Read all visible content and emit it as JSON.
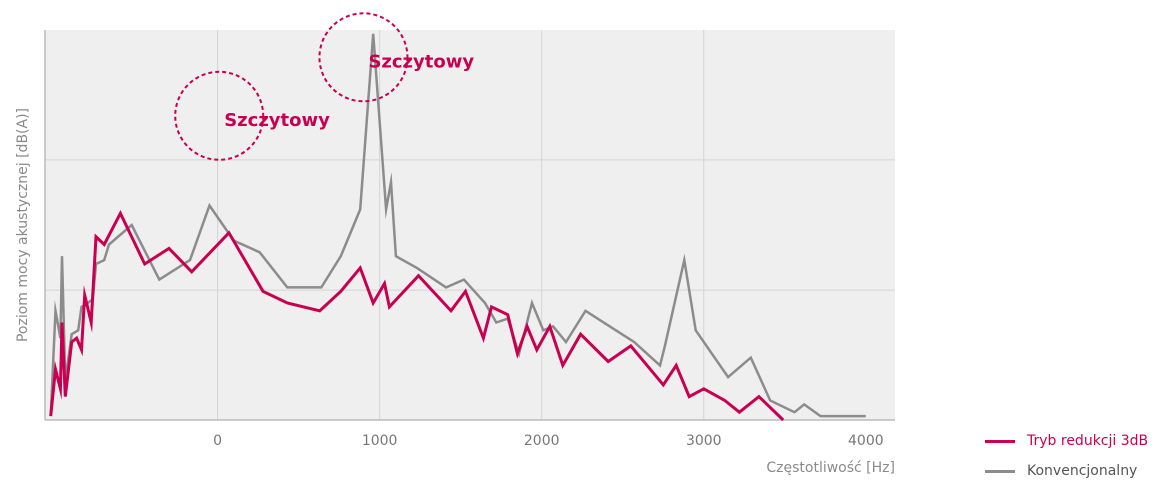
{
  "chart_data": {
    "type": "line",
    "xlabel": "Częstotliwość [Hz]",
    "ylabel": "Poziom mocy akustycznej [dB(A)]",
    "x_ticks": [
      0,
      1000,
      2000,
      3000,
      4000
    ],
    "x_tick_labels": [
      "0",
      "1000",
      "2000",
      "3000",
      "4000"
    ],
    "xlim": [
      -1065,
      4180
    ],
    "ylim": [
      0,
      100
    ],
    "y_gridlines": [
      33.3,
      66.7
    ],
    "grid": true,
    "legend_position": "bottom-right",
    "annotations": [
      {
        "text": "Szczytowy",
        "x": 10,
        "y": 78
      },
      {
        "text": "Szczytowy",
        "x": 900,
        "y": 93
      }
    ],
    "series": [
      {
        "name": "Tryb redukcji 3dB",
        "color": "#c8004f",
        "x": [
          -1030,
          -1000,
          -970,
          -960,
          -940,
          -900,
          -870,
          -840,
          -820,
          -780,
          -750,
          -700,
          -600,
          -450,
          -300,
          -160,
          70,
          280,
          430,
          630,
          760,
          880,
          960,
          1030,
          1060,
          1240,
          1440,
          1530,
          1640,
          1690,
          1790,
          1850,
          1910,
          1970,
          2050,
          2130,
          2240,
          2410,
          2550,
          2750,
          2830,
          2910,
          3000,
          3130,
          3220,
          3340,
          3490
        ],
        "y": [
          1,
          13,
          8,
          25,
          6,
          20,
          21,
          18,
          32,
          25,
          47,
          45,
          53,
          40,
          44,
          38,
          48,
          33,
          30,
          28,
          33,
          39,
          30,
          35,
          29,
          37,
          28,
          33,
          21,
          29,
          27,
          17,
          24,
          18,
          24,
          14,
          22,
          15,
          19,
          9,
          14,
          6,
          8,
          5,
          2,
          6,
          0
        ]
      },
      {
        "name": "Konvencjonalny",
        "color": "#8c8c8c",
        "x": [
          -1030,
          -1000,
          -970,
          -960,
          -940,
          -900,
          -860,
          -840,
          -800,
          -770,
          -750,
          -700,
          -670,
          -530,
          -360,
          -170,
          -50,
          100,
          260,
          430,
          640,
          760,
          880,
          960,
          1040,
          1070,
          1100,
          1230,
          1410,
          1520,
          1650,
          1720,
          1790,
          1860,
          1940,
          2010,
          2070,
          2150,
          2270,
          2420,
          2570,
          2730,
          2760,
          2880,
          2950,
          3150,
          3290,
          3410,
          3560,
          3620,
          3720,
          3850,
          4000
        ],
        "y": [
          1,
          28,
          21,
          42,
          10,
          22,
          23,
          29,
          30,
          31,
          40,
          41,
          45,
          50,
          36,
          41,
          55,
          46,
          43,
          34,
          34,
          42,
          54,
          99,
          54,
          61,
          42,
          39,
          34,
          36,
          30,
          25,
          26,
          17,
          30,
          23,
          24,
          20,
          28,
          24,
          20,
          14,
          19,
          41,
          23,
          11,
          16,
          5,
          2,
          4,
          1,
          1,
          1
        ]
      }
    ]
  }
}
